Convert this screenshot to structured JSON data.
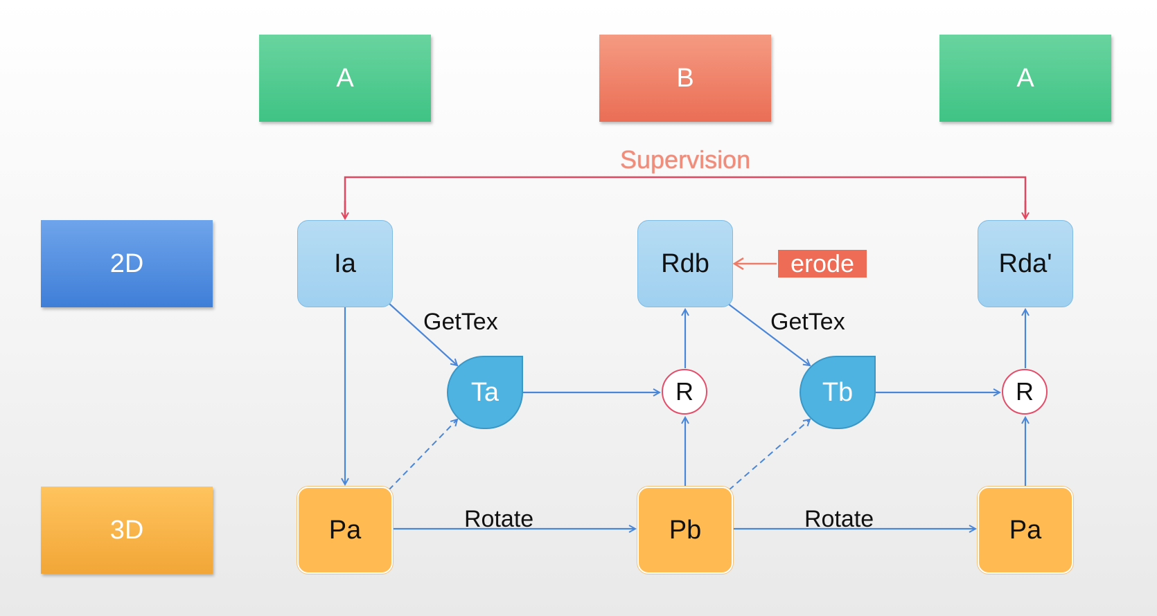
{
  "header": {
    "col1": "A",
    "col2": "B",
    "col3": "A"
  },
  "rows": {
    "top": "2D",
    "bottom": "3D"
  },
  "nodes": {
    "ia": "Ia",
    "rdb": "Rdb",
    "rda": "Rda'",
    "ta": "Ta",
    "tb": "Tb",
    "r1": "R",
    "r2": "R",
    "pa1": "Pa",
    "pb": "Pb",
    "pa2": "Pa"
  },
  "labels": {
    "supervision": "Supervision",
    "erode": "erode",
    "gettex1": "GetTex",
    "gettex2": "GetTex",
    "rotate1": "Rotate",
    "rotate2": "Rotate"
  },
  "colors": {
    "arrow_blue": "#4a86d8",
    "arrow_red": "#e2475f",
    "arrow_salmon": "#ee7b68",
    "green": "#4ec88f",
    "red": "#ef7f66",
    "blue": "#5a92e2",
    "orange": "#fbb44b"
  }
}
